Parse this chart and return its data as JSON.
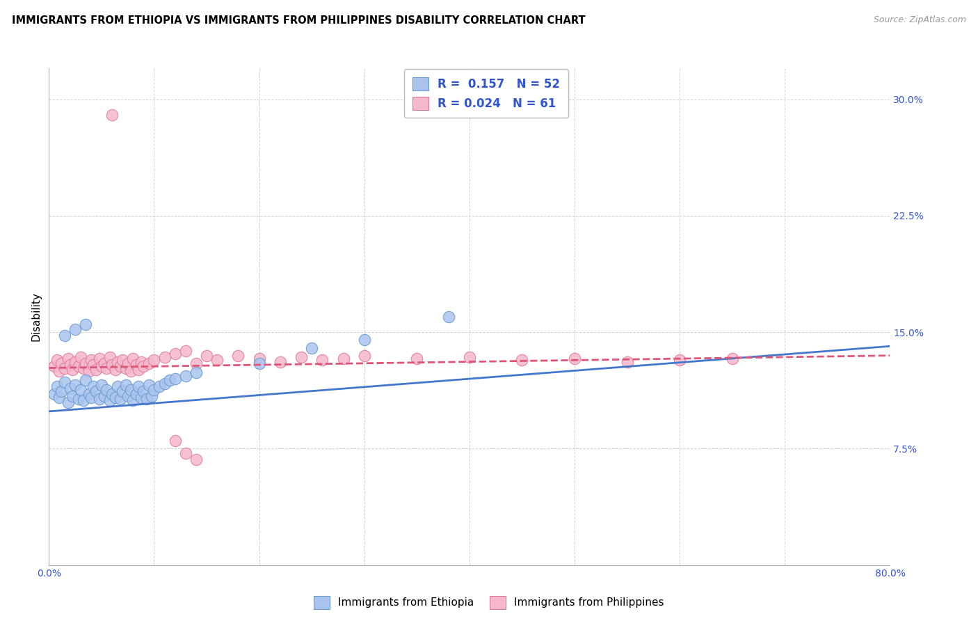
{
  "title": "IMMIGRANTS FROM ETHIOPIA VS IMMIGRANTS FROM PHILIPPINES DISABILITY CORRELATION CHART",
  "source": "Source: ZipAtlas.com",
  "ylabel": "Disability",
  "xlim": [
    0.0,
    0.8
  ],
  "ylim": [
    0.0,
    0.32
  ],
  "xticks": [
    0.0,
    0.1,
    0.2,
    0.3,
    0.4,
    0.5,
    0.6,
    0.7,
    0.8
  ],
  "xticklabels": [
    "0.0%",
    "",
    "",
    "",
    "",
    "",
    "",
    "",
    "80.0%"
  ],
  "yticks": [
    0.0,
    0.075,
    0.15,
    0.225,
    0.3
  ],
  "yticklabels": [
    "",
    "7.5%",
    "15.0%",
    "22.5%",
    "30.0%"
  ],
  "grid_color": "#cccccc",
  "ethiopia_color": "#aac4ee",
  "ethiopia_edge": "#6699cc",
  "philippines_color": "#f5b8cc",
  "philippines_edge": "#dd7799",
  "legend_text_color": "#3355cc",
  "ethiopia_R": 0.157,
  "ethiopia_N": 52,
  "philippines_R": 0.024,
  "philippines_N": 61,
  "eth_line_x0": 0.0,
  "eth_line_y0": 0.099,
  "eth_line_x1": 0.8,
  "eth_line_y1": 0.141,
  "phi_line_x0": 0.0,
  "phi_line_y0": 0.127,
  "phi_line_x1": 0.8,
  "phi_line_y1": 0.135,
  "ethiopia_scatter_x": [
    0.005,
    0.008,
    0.01,
    0.012,
    0.015,
    0.018,
    0.02,
    0.022,
    0.025,
    0.028,
    0.03,
    0.033,
    0.035,
    0.038,
    0.04,
    0.042,
    0.045,
    0.048,
    0.05,
    0.053,
    0.055,
    0.058,
    0.06,
    0.063,
    0.065,
    0.068,
    0.07,
    0.073,
    0.075,
    0.078,
    0.08,
    0.083,
    0.085,
    0.088,
    0.09,
    0.093,
    0.095,
    0.098,
    0.1,
    0.105,
    0.11,
    0.115,
    0.12,
    0.13,
    0.14,
    0.015,
    0.025,
    0.035,
    0.2,
    0.25,
    0.3,
    0.38
  ],
  "ethiopia_scatter_y": [
    0.11,
    0.115,
    0.108,
    0.112,
    0.118,
    0.105,
    0.114,
    0.109,
    0.116,
    0.107,
    0.113,
    0.106,
    0.119,
    0.11,
    0.108,
    0.115,
    0.112,
    0.107,
    0.116,
    0.109,
    0.113,
    0.106,
    0.11,
    0.108,
    0.115,
    0.107,
    0.112,
    0.116,
    0.109,
    0.113,
    0.106,
    0.11,
    0.115,
    0.108,
    0.112,
    0.107,
    0.116,
    0.109,
    0.113,
    0.115,
    0.117,
    0.119,
    0.12,
    0.122,
    0.124,
    0.148,
    0.152,
    0.155,
    0.13,
    0.14,
    0.145,
    0.16
  ],
  "philippines_scatter_x": [
    0.005,
    0.008,
    0.01,
    0.012,
    0.015,
    0.018,
    0.02,
    0.022,
    0.025,
    0.028,
    0.03,
    0.033,
    0.035,
    0.038,
    0.04,
    0.042,
    0.045,
    0.048,
    0.05,
    0.053,
    0.055,
    0.058,
    0.06,
    0.063,
    0.065,
    0.068,
    0.07,
    0.073,
    0.075,
    0.078,
    0.08,
    0.083,
    0.085,
    0.088,
    0.09,
    0.095,
    0.1,
    0.11,
    0.12,
    0.13,
    0.14,
    0.15,
    0.16,
    0.18,
    0.2,
    0.22,
    0.24,
    0.26,
    0.28,
    0.3,
    0.35,
    0.4,
    0.45,
    0.5,
    0.55,
    0.6,
    0.65,
    0.12,
    0.13,
    0.14,
    0.06
  ],
  "philippines_scatter_y": [
    0.128,
    0.132,
    0.125,
    0.13,
    0.127,
    0.133,
    0.129,
    0.126,
    0.131,
    0.128,
    0.134,
    0.127,
    0.13,
    0.125,
    0.132,
    0.129,
    0.126,
    0.133,
    0.128,
    0.13,
    0.127,
    0.134,
    0.129,
    0.126,
    0.131,
    0.128,
    0.132,
    0.127,
    0.13,
    0.125,
    0.133,
    0.129,
    0.126,
    0.131,
    0.128,
    0.13,
    0.132,
    0.134,
    0.136,
    0.138,
    0.13,
    0.135,
    0.132,
    0.135,
    0.133,
    0.131,
    0.134,
    0.132,
    0.133,
    0.135,
    0.133,
    0.134,
    0.132,
    0.133,
    0.131,
    0.132,
    0.133,
    0.08,
    0.072,
    0.068,
    0.29
  ]
}
